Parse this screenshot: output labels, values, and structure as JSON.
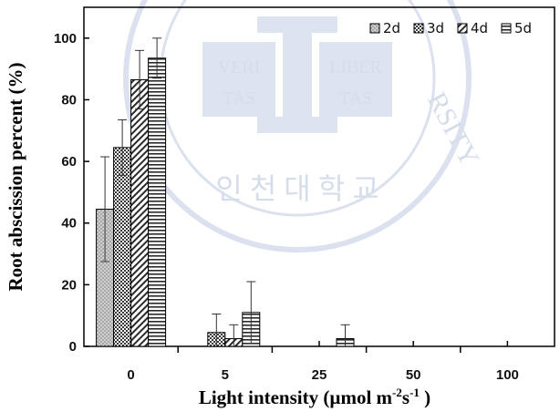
{
  "chart_data": {
    "type": "bar",
    "title": "",
    "xlabel": "Light intensity (µmol m-2s-1 )",
    "ylabel": "Root abscission percent (%)",
    "ylim": [
      0,
      110
    ],
    "yticks": [
      0,
      20,
      40,
      60,
      80,
      100
    ],
    "categories": [
      "0",
      "5",
      "25",
      "50",
      "100"
    ],
    "grid": false,
    "legend_position": "top-right",
    "series": [
      {
        "name": "2d",
        "values": [
          44.5,
          0,
          0,
          0,
          0
        ],
        "errors": [
          17,
          0,
          0,
          0,
          0
        ],
        "pattern": "dots",
        "color": "#bdbdbd"
      },
      {
        "name": "3d",
        "values": [
          64.5,
          4.5,
          0,
          0,
          0
        ],
        "errors": [
          9,
          6,
          0,
          0,
          0
        ],
        "pattern": "checker",
        "color": "#5a5a5a"
      },
      {
        "name": "4d",
        "values": [
          86.5,
          2.5,
          0,
          0,
          0
        ],
        "errors": [
          9.5,
          4.5,
          0,
          0,
          0
        ],
        "pattern": "diagonal",
        "color": "#303030"
      },
      {
        "name": "5d",
        "values": [
          93.5,
          11,
          2.5,
          0,
          0
        ],
        "errors": [
          6.5,
          10,
          4.5,
          0,
          0
        ],
        "pattern": "hlines",
        "color": "#303030"
      }
    ]
  },
  "watermark": {
    "left_word_1": "VERI",
    "left_word_2": "TAS",
    "right_word_1": "LIBER",
    "right_word_2": "TAS",
    "ring_text_top": "RSITY",
    "ring_text_bottom": "인 천 대 학 교"
  }
}
